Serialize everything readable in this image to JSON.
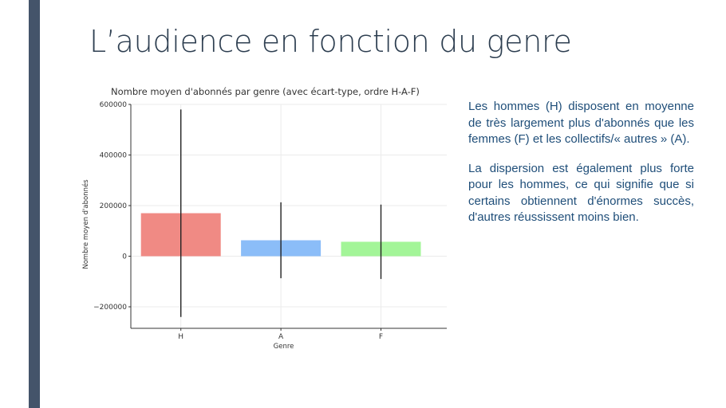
{
  "slide": {
    "title": "L’audience en fonction du genre",
    "paragraphs": [
      "Les hommes (H) disposent en moyenne de très largement plus d'abonnés que les femmes (F) et les collectifs/« autres » (A).",
      "La dispersion est également plus forte pour les hommes, ce qui signifie que si certains obtiennent d'énormes succès, d'autres réussissent moins bien."
    ]
  },
  "chart_data": {
    "type": "bar",
    "title": "Nombre moyen d'abonnés par genre (avec écart-type, ordre H-A-F)",
    "xlabel": "Genre",
    "ylabel": "Nombre moyen d'abonnés",
    "categories": [
      "H",
      "A",
      "F"
    ],
    "values": [
      170000,
      63000,
      57000
    ],
    "error": [
      410000,
      150000,
      147000
    ],
    "colors": [
      "#f08a84",
      "#8bbdf8",
      "#a3f598"
    ],
    "yticks": [
      -200000,
      0,
      200000,
      400000,
      600000
    ],
    "ytick_labels": [
      "−200000",
      "0",
      "200000",
      "400000",
      "600000"
    ],
    "ylim": [
      -285000,
      600000
    ],
    "grid": true
  }
}
